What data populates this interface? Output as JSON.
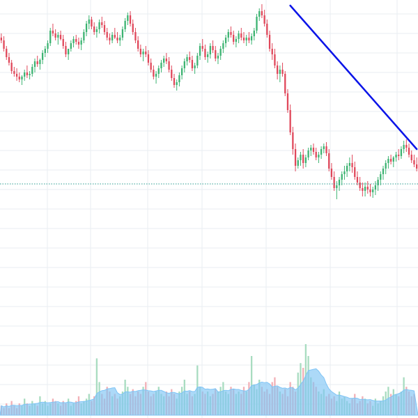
{
  "colors": {
    "background": "#ffffff",
    "grid": "#e8eef2",
    "up": "#3cb371",
    "down": "#e0475a",
    "up_volume": "#a8dcc0",
    "down_volume": "#f2b0b6",
    "volume_area": "#7fc4f5",
    "trendline": "#0b14e8",
    "support_line": "#2a9d8f"
  },
  "chart_data": {
    "type": "candlestick",
    "title": "",
    "xlabel": "",
    "ylabel": "",
    "grid": true,
    "legend": "none",
    "series": [
      {
        "kind": "ohlc",
        "ohlc": [
          [
            88,
            91,
            84,
            86
          ],
          [
            86,
            89,
            78,
            80
          ],
          [
            80,
            82,
            72,
            74
          ],
          [
            74,
            77,
            68,
            70
          ],
          [
            70,
            72,
            62,
            64
          ],
          [
            64,
            67,
            60,
            62
          ],
          [
            62,
            66,
            57,
            60
          ],
          [
            60,
            63,
            56,
            58
          ],
          [
            58,
            61,
            54,
            60
          ],
          [
            60,
            65,
            57,
            63
          ],
          [
            63,
            68,
            59,
            61
          ],
          [
            61,
            64,
            58,
            62
          ],
          [
            62,
            69,
            60,
            67
          ],
          [
            67,
            73,
            63,
            71
          ],
          [
            71,
            75,
            67,
            69
          ],
          [
            69,
            73,
            65,
            72
          ],
          [
            72,
            79,
            69,
            77
          ],
          [
            77,
            82,
            74,
            80
          ],
          [
            80,
            86,
            77,
            84
          ],
          [
            84,
            95,
            82,
            93
          ],
          [
            93,
            98,
            89,
            91
          ],
          [
            91,
            94,
            86,
            88
          ],
          [
            88,
            92,
            83,
            90
          ],
          [
            90,
            93,
            86,
            87
          ],
          [
            87,
            90,
            80,
            82
          ],
          [
            82,
            85,
            74,
            76
          ],
          [
            76,
            79,
            72,
            80
          ],
          [
            80,
            86,
            78,
            84
          ],
          [
            84,
            89,
            81,
            87
          ],
          [
            87,
            90,
            83,
            85
          ],
          [
            85,
            88,
            80,
            83
          ],
          [
            83,
            88,
            79,
            86
          ],
          [
            86,
            94,
            84,
            92
          ],
          [
            92,
            100,
            89,
            98
          ],
          [
            98,
            104,
            94,
            101
          ],
          [
            101,
            103,
            94,
            96
          ],
          [
            96,
            99,
            90,
            92
          ],
          [
            92,
            96,
            88,
            94
          ],
          [
            94,
            101,
            91,
            99
          ],
          [
            99,
            103,
            95,
            97
          ],
          [
            97,
            100,
            90,
            92
          ],
          [
            92,
            95,
            86,
            88
          ],
          [
            88,
            91,
            83,
            86
          ],
          [
            86,
            92,
            84,
            90
          ],
          [
            90,
            95,
            87,
            88
          ],
          [
            88,
            92,
            84,
            86
          ],
          [
            86,
            90,
            82,
            88
          ],
          [
            88,
            96,
            86,
            94
          ],
          [
            94,
            102,
            92,
            100
          ],
          [
            100,
            106,
            97,
            104
          ],
          [
            104,
            107,
            96,
            98
          ],
          [
            98,
            101,
            90,
            92
          ],
          [
            92,
            95,
            84,
            86
          ],
          [
            86,
            89,
            78,
            80
          ],
          [
            80,
            83,
            74,
            76
          ],
          [
            76,
            80,
            71,
            78
          ],
          [
            78,
            82,
            74,
            76
          ],
          [
            76,
            79,
            68,
            70
          ],
          [
            70,
            73,
            63,
            65
          ],
          [
            65,
            68,
            58,
            60
          ],
          [
            60,
            64,
            55,
            62
          ],
          [
            62,
            68,
            59,
            66
          ],
          [
            66,
            72,
            63,
            70
          ],
          [
            70,
            75,
            67,
            73
          ],
          [
            73,
            77,
            69,
            71
          ],
          [
            71,
            74,
            63,
            65
          ],
          [
            65,
            68,
            57,
            59
          ],
          [
            59,
            62,
            52,
            54
          ],
          [
            54,
            58,
            50,
            56
          ],
          [
            56,
            63,
            53,
            61
          ],
          [
            61,
            68,
            58,
            66
          ],
          [
            66,
            73,
            63,
            71
          ],
          [
            71,
            76,
            68,
            74
          ],
          [
            74,
            78,
            70,
            72
          ],
          [
            72,
            75,
            64,
            66
          ],
          [
            66,
            70,
            62,
            68
          ],
          [
            68,
            77,
            66,
            75
          ],
          [
            75,
            84,
            72,
            82
          ],
          [
            82,
            87,
            78,
            80
          ],
          [
            80,
            83,
            72,
            74
          ],
          [
            74,
            78,
            70,
            76
          ],
          [
            76,
            84,
            73,
            82
          ],
          [
            82,
            86,
            77,
            79
          ],
          [
            79,
            82,
            71,
            73
          ],
          [
            73,
            77,
            69,
            75
          ],
          [
            75,
            82,
            72,
            80
          ],
          [
            80,
            86,
            77,
            84
          ],
          [
            84,
            90,
            81,
            88
          ],
          [
            88,
            94,
            85,
            92
          ],
          [
            92,
            96,
            88,
            90
          ],
          [
            90,
            93,
            83,
            85
          ],
          [
            85,
            89,
            81,
            87
          ],
          [
            87,
            93,
            84,
            91
          ],
          [
            91,
            95,
            86,
            88
          ],
          [
            88,
            92,
            84,
            86
          ],
          [
            86,
            90,
            82,
            88
          ],
          [
            88,
            92,
            84,
            86
          ],
          [
            86,
            91,
            83,
            89
          ],
          [
            89,
            95,
            86,
            93
          ],
          [
            93,
            105,
            91,
            103
          ],
          [
            103,
            109,
            100,
            107
          ],
          [
            107,
            112,
            102,
            104
          ],
          [
            104,
            108,
            96,
            98
          ],
          [
            98,
            101,
            88,
            90
          ],
          [
            90,
            93,
            78,
            80
          ],
          [
            80,
            84,
            72,
            76
          ],
          [
            76,
            80,
            66,
            68
          ],
          [
            68,
            71,
            58,
            62
          ],
          [
            62,
            68,
            56,
            65
          ],
          [
            65,
            70,
            60,
            62
          ],
          [
            62,
            64,
            46,
            48
          ],
          [
            48,
            51,
            34,
            36
          ],
          [
            36,
            40,
            18,
            20
          ],
          [
            20,
            24,
            4,
            8
          ],
          [
            8,
            12,
            -8,
            -4
          ],
          [
            -4,
            2,
            -6,
            0
          ],
          [
            0,
            6,
            -4,
            4
          ],
          [
            4,
            8,
            -6,
            -2
          ],
          [
            -2,
            4,
            -5,
            2
          ],
          [
            2,
            9,
            0,
            7
          ],
          [
            7,
            11,
            3,
            9
          ],
          [
            9,
            12,
            4,
            6
          ],
          [
            6,
            9,
            0,
            2
          ],
          [
            2,
            6,
            -2,
            4
          ],
          [
            4,
            10,
            1,
            8
          ],
          [
            8,
            12,
            5,
            10
          ],
          [
            10,
            13,
            3,
            5
          ],
          [
            5,
            8,
            -8,
            -6
          ],
          [
            -6,
            -2,
            -14,
            -12
          ],
          [
            -12,
            -8,
            -22,
            -20
          ],
          [
            -20,
            -15,
            -28,
            -18
          ],
          [
            -18,
            -12,
            -22,
            -14
          ],
          [
            -14,
            -8,
            -18,
            -10
          ],
          [
            -10,
            -4,
            -14,
            -8
          ],
          [
            -8,
            -2,
            -12,
            -4
          ],
          [
            -4,
            2,
            -8,
            -2
          ],
          [
            -2,
            4,
            -9,
            -5
          ],
          [
            -5,
            -1,
            -14,
            -12
          ],
          [
            -12,
            -8,
            -18,
            -16
          ],
          [
            -16,
            -12,
            -22,
            -20
          ],
          [
            -20,
            -16,
            -26,
            -22
          ],
          [
            -22,
            -16,
            -26,
            -19
          ],
          [
            -19,
            -15,
            -24,
            -21
          ],
          [
            -21,
            -17,
            -26,
            -23
          ],
          [
            -23,
            -19,
            -27,
            -21
          ],
          [
            -21,
            -15,
            -25,
            -18
          ],
          [
            -18,
            -12,
            -22,
            -14
          ],
          [
            -14,
            -8,
            -18,
            -10
          ],
          [
            -10,
            -4,
            -14,
            -6
          ],
          [
            -6,
            0,
            -10,
            -2
          ],
          [
            -2,
            3,
            -6,
            1
          ],
          [
            1,
            4,
            -3,
            -1
          ],
          [
            -1,
            3,
            -5,
            2
          ],
          [
            2,
            6,
            -1,
            4
          ],
          [
            4,
            8,
            0,
            3
          ],
          [
            3,
            10,
            1,
            8
          ],
          [
            8,
            14,
            5,
            11
          ],
          [
            11,
            15,
            6,
            9
          ],
          [
            9,
            12,
            2,
            4
          ],
          [
            4,
            7,
            -2,
            0
          ],
          [
            0,
            4,
            -5,
            -3
          ],
          [
            -3,
            2,
            -8,
            -6
          ]
        ]
      },
      {
        "kind": "volume",
        "values": [
          4,
          3,
          5,
          3,
          6,
          4,
          3,
          5,
          4,
          7,
          5,
          4,
          6,
          5,
          4,
          8,
          5,
          6,
          4,
          5,
          7,
          6,
          5,
          4,
          6,
          5,
          7,
          4,
          5,
          6,
          8,
          5,
          6,
          7,
          9,
          6,
          8,
          24,
          14,
          9,
          7,
          12,
          10,
          8,
          9,
          7,
          8,
          10,
          15,
          12,
          9,
          11,
          8,
          10,
          9,
          12,
          14,
          10,
          8,
          9,
          10,
          12,
          9,
          8,
          10,
          8,
          11,
          9,
          7,
          10,
          12,
          15,
          9,
          10,
          8,
          9,
          21,
          12,
          10,
          9,
          10,
          8,
          9,
          11,
          10,
          12,
          14,
          10,
          9,
          12,
          11,
          9,
          10,
          9,
          12,
          10,
          14,
          25,
          13,
          11,
          15,
          12,
          10,
          11,
          9,
          14,
          16,
          12,
          10,
          9,
          11,
          8,
          14,
          12,
          10,
          18,
          22,
          20,
          30,
          25,
          16,
          14,
          12,
          10,
          9,
          11,
          8,
          9,
          7,
          8,
          6,
          10,
          7,
          8,
          6,
          5,
          7,
          9,
          5,
          6,
          8,
          7,
          5,
          6,
          4,
          7,
          5,
          6,
          8,
          10,
          12,
          9,
          11,
          9,
          8,
          10,
          16,
          12,
          10,
          8,
          9
        ]
      }
    ],
    "overlays": [
      {
        "kind": "trendline",
        "from_index": 112,
        "from_value": 111,
        "to_index": 161,
        "to_value": 8
      },
      {
        "kind": "horizontal_line",
        "value": -17,
        "style": "dotted"
      }
    ]
  }
}
